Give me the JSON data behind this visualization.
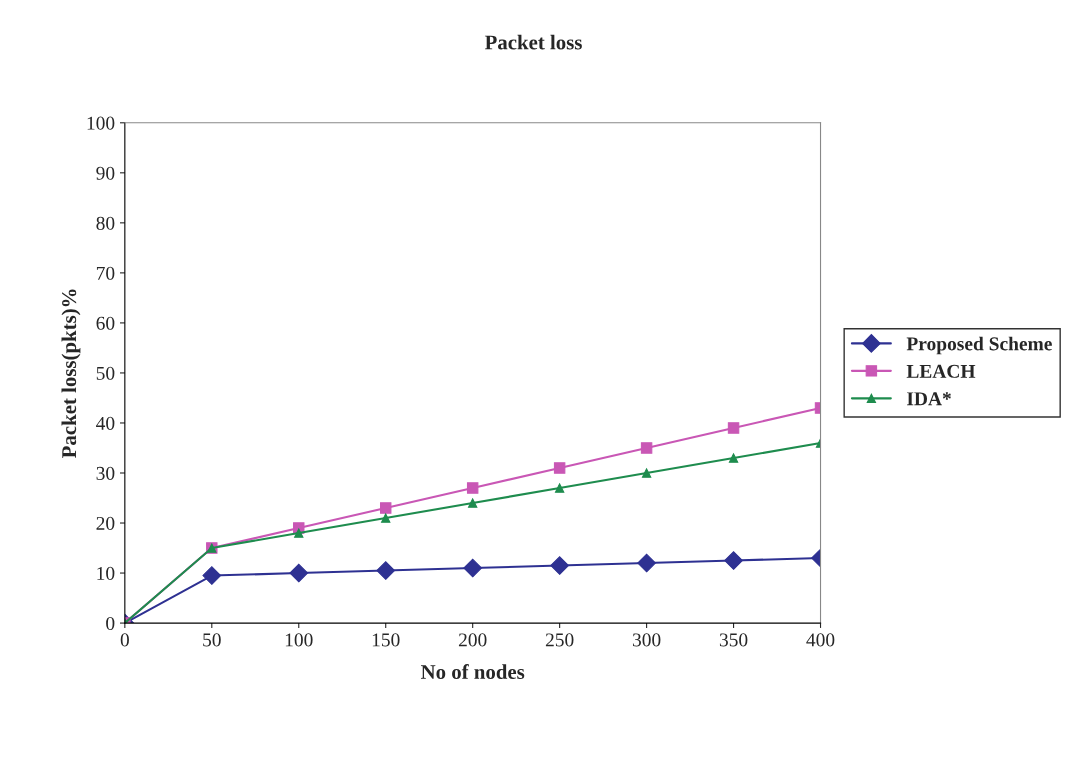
{
  "chart_data": {
    "type": "line",
    "title": "Packet loss",
    "xlabel": "No of nodes",
    "ylabel": "Packet loss(pkts)%",
    "x": [
      0,
      50,
      100,
      150,
      200,
      250,
      300,
      350,
      400
    ],
    "series": [
      {
        "name": "Proposed Scheme",
        "color": "#2e3192",
        "marker": "diamond",
        "values": [
          0,
          9.5,
          10,
          10.5,
          11,
          11.5,
          12,
          12.5,
          13
        ]
      },
      {
        "name": "LEACH",
        "color": "#c957b5",
        "marker": "square",
        "values": [
          0,
          15,
          19,
          23,
          27,
          31,
          35,
          39,
          43
        ]
      },
      {
        "name": "IDA*",
        "color": "#1e8c4e",
        "marker": "triangle",
        "values": [
          0,
          15,
          18,
          21,
          24,
          27,
          30,
          33,
          36
        ]
      }
    ],
    "xlim": [
      0,
      400
    ],
    "xticks": [
      0,
      50,
      100,
      150,
      200,
      250,
      300,
      350,
      400
    ],
    "ylim": [
      0,
      100
    ],
    "yticks": [
      0,
      10,
      20,
      30,
      40,
      50,
      60,
      70,
      80,
      90,
      100
    ],
    "grid": false,
    "legend": "right"
  }
}
